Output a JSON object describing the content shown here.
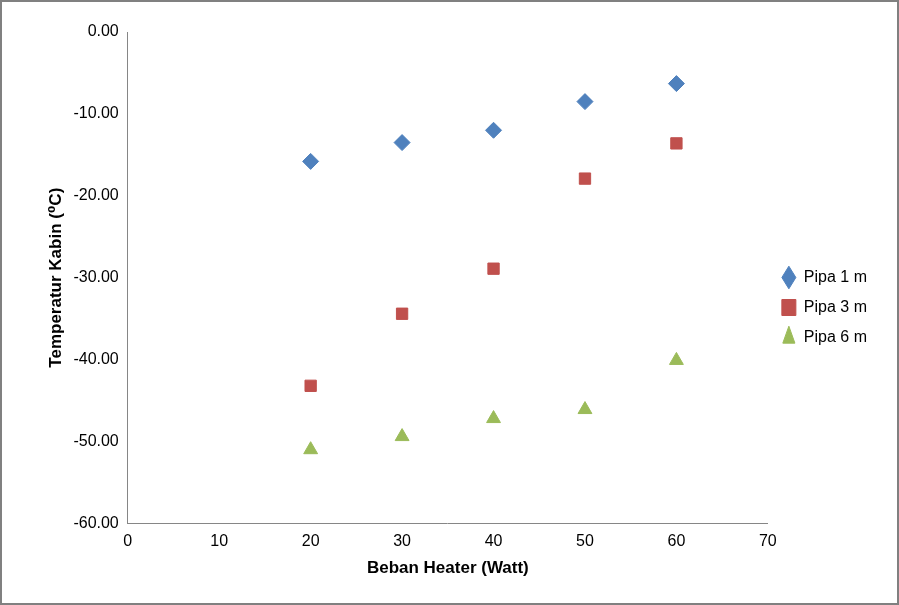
{
  "chart_data": {
    "type": "scatter",
    "x_label": "Beban Heater (Watt)",
    "y_label": "Temperatur Kabin (⁰C)",
    "x": [
      20,
      30,
      40,
      50,
      60
    ],
    "series": [
      {
        "name": "Pipa 1 m",
        "color": "#4f81bd",
        "marker": "diamond",
        "values": [
          -15.8,
          -13.5,
          -12.0,
          -8.5,
          -6.3
        ]
      },
      {
        "name": "Pipa 3 m",
        "color": "#c0504d",
        "marker": "square",
        "values": [
          -43.2,
          -34.4,
          -28.9,
          -17.9,
          -13.6
        ]
      },
      {
        "name": "Pipa 6 m",
        "color": "#9bbb59",
        "marker": "triangle",
        "values": [
          -51.0,
          -49.4,
          -47.2,
          -46.1,
          -40.1
        ]
      }
    ],
    "xlim": [
      0,
      70
    ],
    "xticks": [
      0,
      10,
      20,
      30,
      40,
      50,
      60,
      70
    ],
    "ylim": [
      -60,
      0
    ],
    "yticks": [
      {
        "value": -60,
        "label": "-60.00"
      },
      {
        "value": -50,
        "label": "-50.00"
      },
      {
        "value": -40,
        "label": "-40.00"
      },
      {
        "value": -30,
        "label": "-30.00"
      },
      {
        "value": -20,
        "label": "-20.00"
      },
      {
        "value": -10,
        "label": "-10.00"
      },
      {
        "value": 0,
        "label": "0.00"
      }
    ],
    "grid": false,
    "legend": "right"
  }
}
